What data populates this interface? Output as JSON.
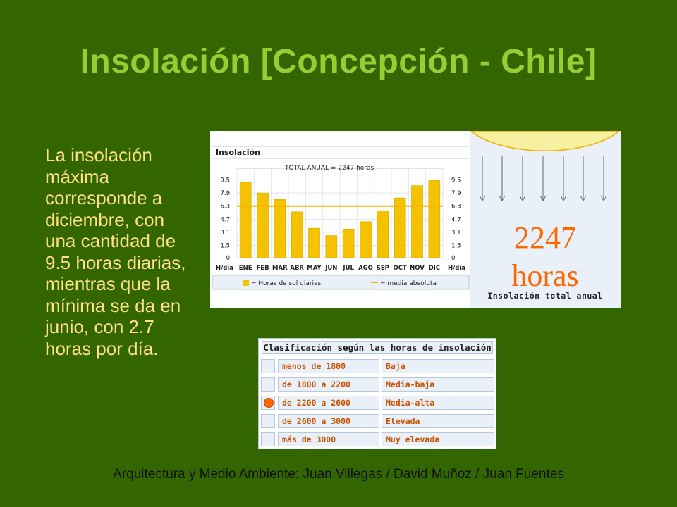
{
  "slide": {
    "title": "Insolación [Concepción - Chile]",
    "body": "La insolación máxima corresponde a diciembre, con una cantidad de 9.5 horas diarias, mientras que la mínima se da en junio, con 2.7 horas por día.",
    "footer": "Arquitectura y Medio Ambiente: Juan Villegas / David Muñoz / Juan Fuentes"
  },
  "chart_data": {
    "type": "bar",
    "title": "Insolación",
    "subtitle": "TOTAL ANUAL = 2247 horas",
    "categories": [
      "ENE",
      "FEB",
      "MAR",
      "ABR",
      "MAY",
      "JUN",
      "JUL",
      "AGO",
      "SEP",
      "OCT",
      "NOV",
      "DIC"
    ],
    "series": [
      {
        "name": "= Horas de sol diarias",
        "values": [
          9.2,
          7.9,
          7.1,
          5.6,
          3.6,
          2.7,
          3.5,
          4.4,
          5.7,
          7.3,
          8.8,
          9.5
        ],
        "color": "#f5c200"
      }
    ],
    "mean_line": {
      "name": "= media absoluta",
      "value": 6.3,
      "color": "#f0b400"
    },
    "y_ticks": [
      "9.5",
      "7.9",
      "6.3",
      "4.7",
      "3.1",
      "1.5",
      "0"
    ],
    "y_tick_values": [
      9.5,
      7.9,
      6.3,
      4.7,
      3.1,
      1.5,
      0
    ],
    "ylabel_left": "H/día",
    "ylabel_right": "H/día",
    "ylim": [
      0,
      10.4
    ],
    "grid": true,
    "legend_position": "bottom"
  },
  "annual": {
    "value": "2247",
    "unit": "horas",
    "caption": "Insolación total anual"
  },
  "classification": {
    "title": "Clasificación según las horas de insolación",
    "rows": [
      {
        "range": "menos de 1800",
        "level": "Baja",
        "selected": false
      },
      {
        "range": "de 1800 a 2200",
        "level": "Media-baja",
        "selected": false
      },
      {
        "range": "de 2200 a 2600",
        "level": "Media-alta",
        "selected": true
      },
      {
        "range": "de 2600 a 3000",
        "level": "Elevada",
        "selected": false
      },
      {
        "range": "más de 3000",
        "level": "Muy elevada",
        "selected": false
      }
    ],
    "marker_color": "#ff6600"
  }
}
